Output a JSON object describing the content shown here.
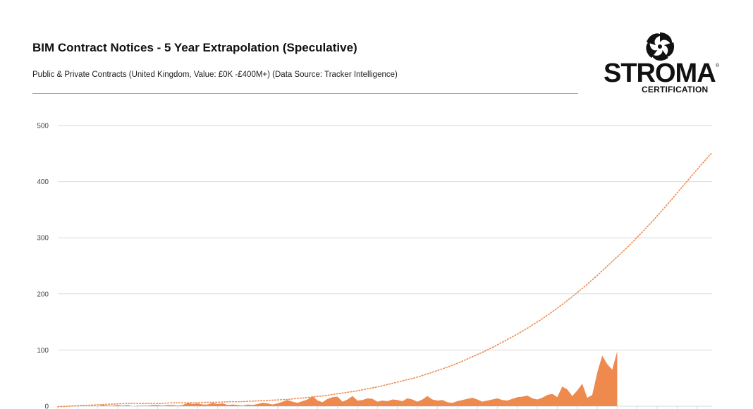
{
  "header": {
    "title": "BIM Contract Notices - 5 Year Extrapolation (Speculative)",
    "subtitle": "Public & Private Contracts (United Kingdom, Value: £0K -£400M+) (Data Source: Tracker Intelligence)"
  },
  "logo": {
    "word": "STROMA",
    "registered": "®",
    "sub": "CERTIFICATION",
    "icon": "stroma-swirl-icon"
  },
  "colors": {
    "accent": "#ef8a4f",
    "area": "#ef8a4f",
    "trend": "#ef8a4f",
    "grid": "#d9d9d9"
  },
  "chart_data": {
    "type": "area",
    "title": "BIM Contract Notices - 5 Year Extrapolation (Speculative)",
    "subtitle": "Public & Private Contracts (United Kingdom, Value: £0K -£400M+) (Data Source: Tracker Intelligence)",
    "xlabel": "",
    "ylabel": "",
    "ylim": [
      0,
      500
    ],
    "yticks": [
      0,
      100,
      200,
      300,
      400,
      500
    ],
    "grid": true,
    "x_period_count": 132,
    "series": [
      {
        "kind": "area",
        "values": [
          0,
          0,
          0,
          1,
          0,
          1,
          0,
          1,
          0,
          2,
          1,
          1,
          2,
          1,
          2,
          0,
          1,
          1,
          1,
          2,
          2,
          1,
          2,
          2,
          1,
          2,
          6,
          4,
          5,
          3,
          3,
          6,
          4,
          5,
          2,
          3,
          2,
          1,
          3,
          2,
          4,
          6,
          5,
          3,
          5,
          8,
          11,
          8,
          6,
          9,
          12,
          18,
          10,
          7,
          13,
          16,
          17,
          8,
          12,
          18,
          10,
          11,
          14,
          13,
          8,
          10,
          9,
          12,
          11,
          9,
          14,
          12,
          8,
          12,
          18,
          12,
          10,
          11,
          7,
          6,
          9,
          11,
          13,
          15,
          12,
          8,
          10,
          12,
          14,
          11,
          10,
          13,
          16,
          17,
          19,
          14,
          12,
          15,
          20,
          22,
          16,
          35,
          30,
          18,
          28,
          40,
          15,
          20,
          60,
          90,
          75,
          65,
          98
        ]
      },
      {
        "kind": "trend",
        "dotted": true,
        "values": [
          -1,
          0,
          1,
          2,
          3,
          4,
          5,
          5,
          5,
          5,
          6,
          6,
          6,
          7,
          7,
          8,
          8,
          9,
          10,
          11,
          12,
          14,
          16,
          18,
          21,
          24,
          27,
          31,
          35,
          40,
          45,
          50,
          56,
          63,
          70,
          78,
          87,
          96,
          106,
          117,
          128,
          140,
          153,
          167,
          182,
          198,
          215,
          233,
          252,
          271,
          291,
          312,
          334,
          357,
          381,
          405,
          429,
          452
        ]
      }
    ]
  }
}
